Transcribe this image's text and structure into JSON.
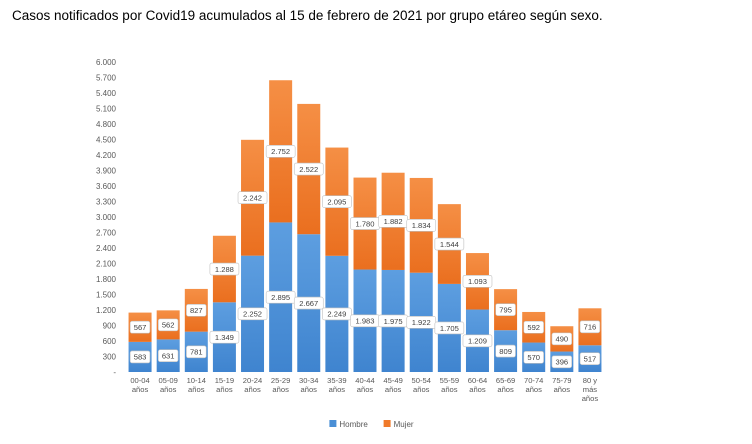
{
  "page": {
    "title": "Casos notificados por Covid19 acumulados al 15 de febrero de 2021 por grupo etáreo según sexo."
  },
  "chart_data": {
    "type": "bar",
    "stacked": true,
    "categories": [
      [
        "00-04",
        "años"
      ],
      [
        "05-09",
        "años"
      ],
      [
        "10-14",
        "años"
      ],
      [
        "15-19",
        "años"
      ],
      [
        "20-24",
        "años"
      ],
      [
        "25-29",
        "años"
      ],
      [
        "30-34",
        "años"
      ],
      [
        "35-39",
        "años"
      ],
      [
        "40-44",
        "años"
      ],
      [
        "45-49",
        "años"
      ],
      [
        "50-54",
        "años"
      ],
      [
        "55-59",
        "años"
      ],
      [
        "60-64",
        "años"
      ],
      [
        "65-69",
        "años"
      ],
      [
        "70-74",
        "años"
      ],
      [
        "75-79",
        "años"
      ],
      [
        "80 y",
        "más",
        "años"
      ]
    ],
    "series": [
      {
        "name": "Hombre",
        "color": "#4a8fd6",
        "values": [
          583,
          631,
          781,
          1349,
          2252,
          2895,
          2667,
          2249,
          1983,
          1975,
          1922,
          1705,
          1209,
          809,
          570,
          396,
          517
        ],
        "labels": [
          "583",
          "631",
          "781",
          "1.349",
          "2.252",
          "2.895",
          "2.667",
          "2.249",
          "1.983",
          "1.975",
          "1.922",
          "1.705",
          "1.209",
          "809",
          "570",
          "396",
          "517"
        ]
      },
      {
        "name": "Mujer",
        "color": "#f07a2a",
        "values": [
          567,
          562,
          827,
          1288,
          2242,
          2752,
          2522,
          2095,
          1780,
          1882,
          1834,
          1544,
          1093,
          795,
          592,
          490,
          716
        ],
        "labels": [
          "567",
          "562",
          "827",
          "1.288",
          "2.242",
          "2.752",
          "2.522",
          "2.095",
          "1.780",
          "1.882",
          "1.834",
          "1.544",
          "1.093",
          "795",
          "592",
          "490",
          "716"
        ]
      }
    ],
    "ylim": [
      0,
      6000
    ],
    "yticks": [
      0,
      300,
      600,
      900,
      1200,
      1500,
      1800,
      2100,
      2400,
      2700,
      3000,
      3300,
      3600,
      3900,
      4200,
      4500,
      4800,
      5100,
      5400,
      5700,
      6000
    ],
    "ytick_labels": [
      "-",
      "300",
      "600",
      "900",
      "1.200",
      "1.500",
      "1.800",
      "2.100",
      "2.400",
      "2.700",
      "3.000",
      "3.300",
      "3.600",
      "3.900",
      "4.200",
      "4.500",
      "4.800",
      "5.100",
      "5.400",
      "5.700",
      "6.000"
    ],
    "grid": false,
    "legend_position": "bottom-center"
  }
}
